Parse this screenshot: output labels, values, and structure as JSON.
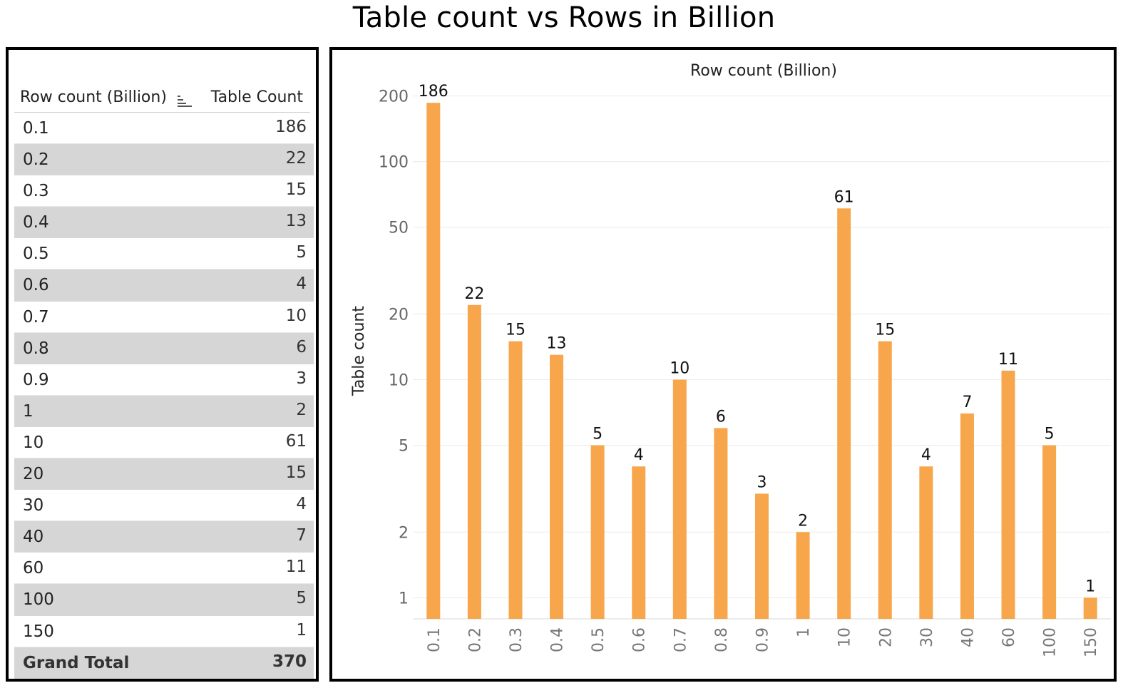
{
  "title": "Table count vs Rows in Billion",
  "table": {
    "col1_header": "Row count (Billion)",
    "col2_header": "Table Count",
    "rows": [
      {
        "label": "0.1",
        "count": "186"
      },
      {
        "label": "0.2",
        "count": "22"
      },
      {
        "label": "0.3",
        "count": "15"
      },
      {
        "label": "0.4",
        "count": "13"
      },
      {
        "label": "0.5",
        "count": "5"
      },
      {
        "label": "0.6",
        "count": "4"
      },
      {
        "label": "0.7",
        "count": "10"
      },
      {
        "label": "0.8",
        "count": "6"
      },
      {
        "label": "0.9",
        "count": "3"
      },
      {
        "label": "1",
        "count": "2"
      },
      {
        "label": "10",
        "count": "61"
      },
      {
        "label": "20",
        "count": "15"
      },
      {
        "label": "30",
        "count": "4"
      },
      {
        "label": "40",
        "count": "7"
      },
      {
        "label": "60",
        "count": "11"
      },
      {
        "label": "100",
        "count": "5"
      },
      {
        "label": "150",
        "count": "1"
      }
    ],
    "total_label": "Grand Total",
    "total_count": "370"
  },
  "chart_data": {
    "type": "bar",
    "title": "Row count (Billion)",
    "xlabel": "",
    "ylabel": "Table count",
    "y_scale": "log",
    "ylim": [
      0.8,
      230
    ],
    "yticks": [
      1,
      2,
      5,
      10,
      20,
      50,
      100,
      200
    ],
    "grid": true,
    "categories": [
      "0.1",
      "0.2",
      "0.3",
      "0.4",
      "0.5",
      "0.6",
      "0.7",
      "0.8",
      "0.9",
      "1",
      "10",
      "20",
      "30",
      "40",
      "60",
      "100",
      "150"
    ],
    "values": [
      186,
      22,
      15,
      13,
      5,
      4,
      10,
      6,
      3,
      2,
      61,
      15,
      4,
      7,
      11,
      5,
      1
    ],
    "bar_color": "#F8A64B"
  }
}
